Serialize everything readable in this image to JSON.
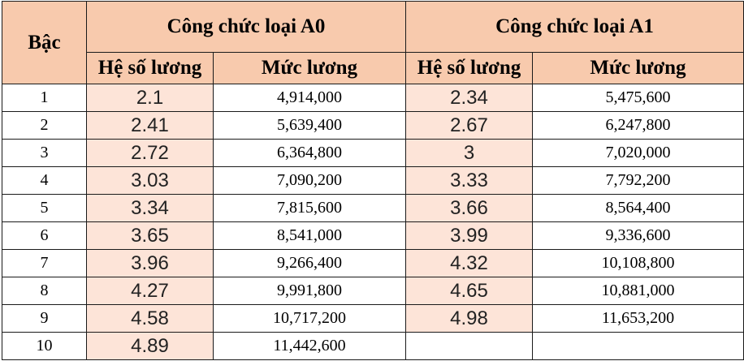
{
  "headers": {
    "bac": "Bậc",
    "group_a0": "Công chức loại A0",
    "group_a1": "Công chức loại A1",
    "he_so_a0": "Hệ số lương",
    "muc_luong_a0": "Mức lương",
    "he_so_a1": "Hệ số lương",
    "muc_luong_a1": "Mức lương"
  },
  "rows": [
    {
      "bac": "1",
      "a0_he_so": "2.1",
      "a0_muc_luong": "4,914,000",
      "a1_he_so": "2.34",
      "a1_muc_luong": "5,475,600"
    },
    {
      "bac": "2",
      "a0_he_so": "2.41",
      "a0_muc_luong": "5,639,400",
      "a1_he_so": "2.67",
      "a1_muc_luong": "6,247,800"
    },
    {
      "bac": "3",
      "a0_he_so": "2.72",
      "a0_muc_luong": "6,364,800",
      "a1_he_so": "3",
      "a1_muc_luong": "7,020,000"
    },
    {
      "bac": "4",
      "a0_he_so": "3.03",
      "a0_muc_luong": "7,090,200",
      "a1_he_so": "3.33",
      "a1_muc_luong": "7,792,200"
    },
    {
      "bac": "5",
      "a0_he_so": "3.34",
      "a0_muc_luong": "7,815,600",
      "a1_he_so": "3.66",
      "a1_muc_luong": "8,564,400"
    },
    {
      "bac": "6",
      "a0_he_so": "3.65",
      "a0_muc_luong": "8,541,000",
      "a1_he_so": "3.99",
      "a1_muc_luong": "9,336,600"
    },
    {
      "bac": "7",
      "a0_he_so": "3.96",
      "a0_muc_luong": "9,266,400",
      "a1_he_so": "4.32",
      "a1_muc_luong": "10,108,800"
    },
    {
      "bac": "8",
      "a0_he_so": "4.27",
      "a0_muc_luong": "9,991,800",
      "a1_he_so": "4.65",
      "a1_muc_luong": "10,881,000"
    },
    {
      "bac": "9",
      "a0_he_so": "4.58",
      "a0_muc_luong": "10,717,200",
      "a1_he_so": "4.98",
      "a1_muc_luong": "11,653,200"
    },
    {
      "bac": "10",
      "a0_he_so": "4.89",
      "a0_muc_luong": "11,442,600",
      "a1_he_so": "",
      "a1_muc_luong": ""
    }
  ],
  "colors": {
    "header_fill": "#f8caad",
    "coefficient_fill": "#fde4d8",
    "border": "#1a1a1a"
  }
}
